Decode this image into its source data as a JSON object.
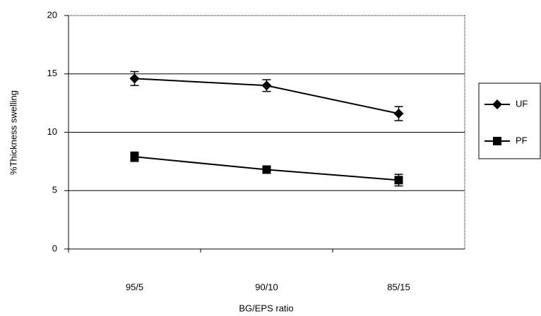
{
  "chart_data": {
    "type": "line",
    "x_label": "BG/EPS ratio",
    "y_label": "%Thickness swelling",
    "categories": [
      "95/5",
      "90/10",
      "85/15"
    ],
    "series": [
      {
        "name": "UF",
        "color": "#000000",
        "marker": "diamond",
        "values": [
          14.6,
          14.0,
          11.6
        ],
        "errors": [
          0.6,
          0.5,
          0.6
        ]
      },
      {
        "name": "PF",
        "color": "#000000",
        "marker": "square",
        "values": [
          7.9,
          6.8,
          5.9
        ],
        "errors": [
          0.4,
          0.3,
          0.5
        ]
      }
    ],
    "ylim": [
      0,
      20
    ],
    "yticks": [
      0,
      5,
      10,
      15,
      20
    ],
    "grid": true,
    "legend": "right"
  }
}
